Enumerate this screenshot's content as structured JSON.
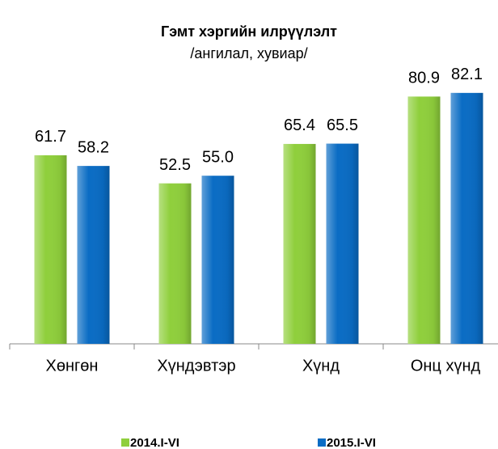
{
  "chart_data": {
    "type": "bar",
    "title": "Гэмт хэргийн илрүүлэлт",
    "subtitle": "/ангилал, хувиар/",
    "categories": [
      "Хөнгөн",
      "Хүндэвтэр",
      "Хүнд",
      "Онц хүнд"
    ],
    "series": [
      {
        "name": "2014.I-VI",
        "color": "#8fcf3c",
        "values": [
          61.7,
          52.5,
          65.4,
          80.9
        ],
        "value_labels": [
          "61.7",
          "52.5",
          "65.4",
          "80.9"
        ]
      },
      {
        "name": "2015.I-VI",
        "color": "#0a6cc4",
        "values": [
          58.2,
          55,
          65.5,
          82.1
        ],
        "value_labels": [
          "58.2",
          "55.0",
          "65.5",
          "82.1"
        ]
      }
    ],
    "ylim": [
      0,
      90
    ]
  }
}
